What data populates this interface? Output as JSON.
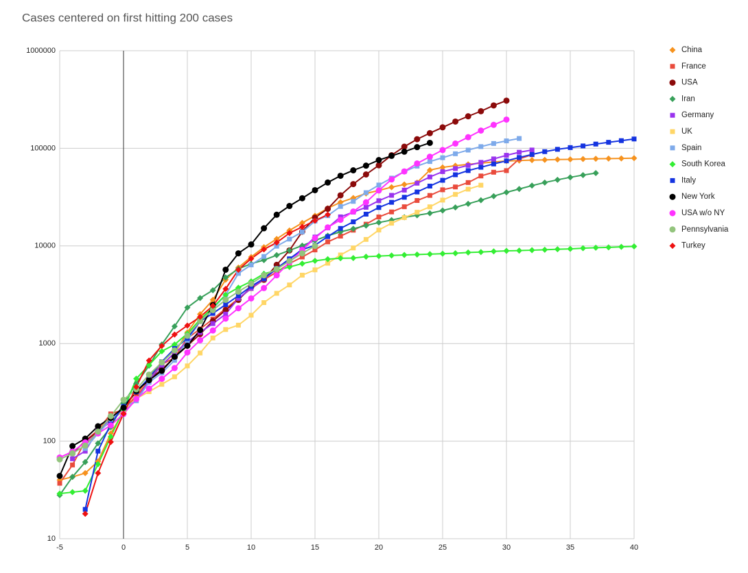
{
  "chart_data": {
    "type": "line",
    "title": "Cases centered on first hitting 200 cases",
    "x": [
      -5,
      -4,
      -3,
      -2,
      -1,
      0,
      1,
      2,
      3,
      4,
      5,
      6,
      7,
      8,
      9,
      10,
      11,
      12,
      13,
      14,
      15,
      16,
      17,
      18,
      19,
      20,
      21,
      22,
      23,
      24,
      25,
      26,
      27,
      28,
      29,
      30,
      31,
      32,
      33,
      34,
      35,
      36,
      37,
      38,
      39,
      40
    ],
    "xlim": [
      -5,
      40
    ],
    "xticks": [
      -5,
      0,
      5,
      10,
      15,
      20,
      25,
      30,
      35,
      40
    ],
    "ylim": [
      10,
      1000000
    ],
    "yticks": [
      10,
      100,
      1000,
      10000,
      100000,
      1000000
    ],
    "log_y": true,
    "grid": true,
    "legend": "right",
    "series": [
      {
        "name": "China",
        "color": "#f6921e",
        "marker": "diamond",
        "values": [
          40,
          43,
          47,
          62,
          120,
          200,
          300,
          450,
          600,
          800,
          1300,
          2000,
          2800,
          4500,
          6000,
          7700,
          9700,
          11800,
          14400,
          17200,
          20400,
          24300,
          28000,
          31000,
          34500,
          37000,
          40000,
          42600,
          44600,
          59800,
          63800,
          66400,
          68500,
          70500,
          72400,
          74200,
          75000,
          75700,
          76200,
          76700,
          77100,
          77700,
          78100,
          78500,
          78800,
          79300
        ]
      },
      {
        "name": "France",
        "color": "#e94b3c",
        "marker": "square",
        "values": [
          37,
          57,
          100,
          130,
          190,
          210,
          285,
          420,
          610,
          716,
          1130,
          1410,
          1780,
          2280,
          2880,
          3660,
          4500,
          5400,
          6600,
          7700,
          9100,
          11000,
          12600,
          14500,
          16700,
          19800,
          22300,
          25200,
          29200,
          32900,
          37600,
          40200,
          44600,
          52100,
          56900,
          59100,
          78000,
          86000,
          null,
          null,
          null,
          null,
          null,
          null,
          null,
          null
        ]
      },
      {
        "name": "USA",
        "color": "#8b0a0a",
        "marker": "circle",
        "values": [
          null,
          75,
          100,
          125,
          160,
          220,
          320,
          430,
          540,
          720,
          950,
          1250,
          1700,
          2200,
          2800,
          3800,
          4500,
          6400,
          9000,
          14000,
          19500,
          24000,
          33000,
          43000,
          54000,
          67000,
          85000,
          104000,
          124000,
          143000,
          164000,
          188000,
          213000,
          240000,
          275000,
          308000,
          null,
          null,
          null,
          null,
          null,
          null,
          null,
          null,
          null,
          null
        ]
      },
      {
        "name": "Iran",
        "color": "#38a05a",
        "marker": "diamond",
        "values": [
          28,
          43,
          61,
          95,
          139,
          245,
          388,
          593,
          978,
          1501,
          2336,
          2922,
          3513,
          4747,
          5823,
          6566,
          7161,
          8042,
          9000,
          10075,
          11364,
          12729,
          13938,
          14991,
          16169,
          17361,
          18407,
          19644,
          20610,
          21638,
          23049,
          24811,
          27017,
          29406,
          32332,
          35408,
          38309,
          41495,
          44605,
          47593,
          50468,
          53183,
          55743,
          null,
          null,
          null
        ]
      },
      {
        "name": "Germany",
        "color": "#9933ee",
        "marker": "square",
        "values": [
          null,
          66,
          79,
          130,
          165,
          203,
          262,
          420,
          600,
          800,
          1040,
          1300,
          1600,
          2000,
          2900,
          3675,
          4585,
          5795,
          7272,
          9257,
          12327,
          15320,
          19848,
          22213,
          24873,
          29056,
          32986,
          37323,
          43938,
          50871,
          57695,
          62095,
          66885,
          71808,
          77872,
          84794,
          91159,
          96092,
          null,
          null,
          null,
          null,
          null,
          null,
          null,
          null
        ]
      },
      {
        "name": "UK",
        "color": "#ffd666",
        "marker": "square",
        "values": [
          null,
          null,
          null,
          null,
          163,
          206,
          273,
          321,
          382,
          456,
          590,
          800,
          1140,
          1391,
          1543,
          1950,
          2626,
          3269,
          3983,
          5018,
          5683,
          6650,
          8077,
          9529,
          11658,
          14543,
          17089,
          19522,
          22141,
          25150,
          29474,
          33718,
          38168,
          41903,
          null,
          null,
          null,
          null,
          null,
          null,
          null,
          null,
          null,
          null,
          null,
          null
        ]
      },
      {
        "name": "Spain",
        "color": "#7eaaea",
        "marker": "square",
        "values": [
          null,
          null,
          84,
          120,
          165,
          222,
          259,
          400,
          500,
          673,
          1073,
          1695,
          2277,
          3146,
          5232,
          6391,
          7798,
          9942,
          11748,
          13910,
          17963,
          20410,
          25374,
          28603,
          35136,
          42058,
          49515,
          57786,
          65719,
          73235,
          80110,
          87956,
          95923,
          104118,
          112065,
          119199,
          126168,
          null,
          null,
          null,
          null,
          null,
          null,
          null,
          null,
          null
        ]
      },
      {
        "name": "South Korea",
        "color": "#33ee33",
        "marker": "diamond",
        "values": [
          29,
          30,
          31,
          58,
          111,
          209,
          436,
          602,
          833,
          977,
          1261,
          1766,
          2337,
          3150,
          3736,
          4335,
          5186,
          5621,
          6088,
          6593,
          7041,
          7314,
          7478,
          7513,
          7755,
          7869,
          7979,
          8086,
          8162,
          8236,
          8320,
          8413,
          8565,
          8652,
          8799,
          8897,
          8961,
          9037,
          9137,
          9241,
          9332,
          9478,
          9583,
          9661,
          9786,
          9887
        ]
      },
      {
        "name": "Italy",
        "color": "#1433e0",
        "marker": "square",
        "values": [
          null,
          null,
          20,
          79,
          150,
          227,
          320,
          445,
          650,
          888,
          1128,
          1694,
          2036,
          2502,
          3089,
          3858,
          4636,
          5883,
          7375,
          9172,
          10149,
          12462,
          15113,
          17660,
          21157,
          24747,
          27980,
          31506,
          35713,
          41035,
          47021,
          53578,
          59138,
          63927,
          69176,
          74386,
          80589,
          86498,
          92472,
          97689,
          101739,
          105792,
          110574,
          115242,
          119827,
          124632
        ]
      },
      {
        "name": "New York",
        "color": "#000000",
        "marker": "circle",
        "values": [
          44,
          89,
          106,
          142,
          173,
          220,
          328,
          421,
          525,
          732,
          950,
          1374,
          2480,
          5707,
          8400,
          10356,
          15168,
          20875,
          25665,
          30811,
          37258,
          44635,
          52318,
          59513,
          66497,
          75795,
          83712,
          92381,
          102863,
          113704,
          null,
          null,
          null,
          null,
          null,
          null,
          null,
          null,
          null,
          null,
          null,
          null,
          null,
          null,
          null,
          null
        ]
      },
      {
        "name": "USA w/o NY",
        "color": "#ff33ff",
        "marker": "circle",
        "values": [
          68,
          78,
          97,
          120,
          145,
          190,
          270,
          345,
          435,
          560,
          810,
          1080,
          1360,
          1800,
          2300,
          2900,
          3700,
          5000,
          6800,
          9100,
          12000,
          15500,
          18500,
          22500,
          28000,
          37000,
          48000,
          58000,
          70000,
          82000,
          96000,
          112000,
          130000,
          152000,
          174000,
          197000,
          null,
          null,
          null,
          null,
          null,
          null,
          null,
          null,
          null,
          null
        ]
      },
      {
        "name": "Pennsylvania",
        "color": "#93c47d",
        "marker": "circle",
        "values": [
          65,
          75,
          90,
          125,
          180,
          265,
          340,
          480,
          640,
          850,
          1200,
          1700,
          2200,
          2800,
          3400,
          4100,
          5000,
          5800,
          7000,
          8400,
          10000,
          null,
          null,
          null,
          null,
          null,
          null,
          null,
          null,
          null,
          null,
          null,
          null,
          null,
          null,
          null,
          null,
          null,
          null,
          null,
          null,
          null,
          null,
          null,
          null,
          null
        ]
      },
      {
        "name": "Turkey",
        "color": "#ee1111",
        "marker": "diamond",
        "values": [
          null,
          null,
          18,
          47,
          98,
          191,
          359,
          670,
          947,
          1236,
          1529,
          1872,
          2433,
          3629,
          5698,
          7402,
          9217,
          10827,
          13531,
          15679,
          18135,
          20921,
          null,
          null,
          null,
          null,
          null,
          null,
          null,
          null,
          null,
          null,
          null,
          null,
          null,
          null,
          null,
          null,
          null,
          null,
          null,
          null,
          null,
          null,
          null,
          null
        ]
      }
    ]
  }
}
